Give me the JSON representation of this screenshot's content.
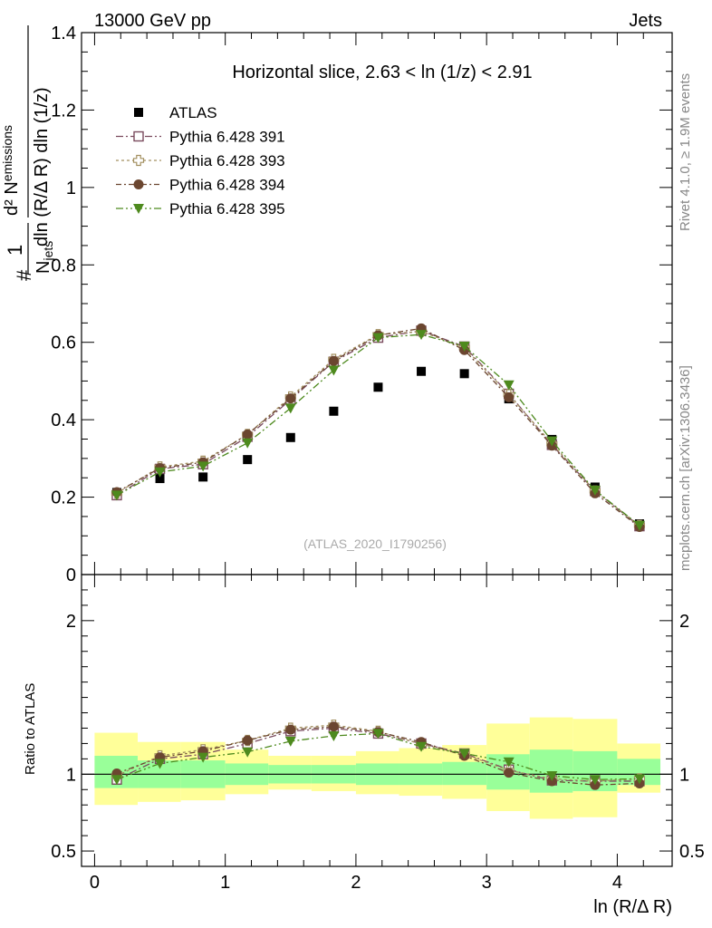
{
  "header": {
    "left_label": "13000 GeV pp",
    "right_label": "Jets"
  },
  "side_labels": {
    "rivet": "Rivet 4.1.0, ≥ 1.9M events",
    "mcplots": "mcplots.cern.ch [arXiv:1306.3436]"
  },
  "ylabel_top": {
    "num": "#",
    "den_main": "N",
    "den_sub": "jets",
    "dnum_main": "d² N",
    "dnum_sub": "emissions",
    "dden": "dln (R/Δ R) dln (1/z)"
  },
  "ratio_ylabel": "Ratio to ATLAS",
  "xlabel": "ln (R/Δ R)",
  "chart_data": [
    {
      "type": "scatter",
      "title": "Horizontal slice, 2.63 < ln (1/z) < 2.91",
      "watermark": "(ATLAS_2020_I1790256)",
      "xlim": [
        -0.1,
        4.42
      ],
      "ylim": [
        0,
        1.4
      ],
      "yticks": [
        0,
        0.2,
        0.4,
        0.6,
        0.8,
        1,
        1.2,
        1.4
      ],
      "ytick_labels": [
        "0",
        "0.2",
        "0.4",
        "0.6",
        "0.8",
        "1",
        "1.2",
        "1.4"
      ],
      "x": [
        0.17,
        0.5,
        0.83,
        1.17,
        1.5,
        1.83,
        2.17,
        2.5,
        2.83,
        3.17,
        3.5,
        3.83,
        4.17
      ],
      "series": [
        {
          "name": "ATLAS",
          "color": "#000000",
          "marker": "square-filled",
          "values": [
            0.212,
            0.248,
            0.252,
            0.297,
            0.354,
            0.422,
            0.484,
            0.525,
            0.519,
            0.454,
            0.349,
            0.226,
            0.131
          ]
        },
        {
          "name": "Pythia 6.428 391",
          "color": "#7a4b5e",
          "marker": "square-open",
          "values": [
            0.205,
            0.273,
            0.285,
            0.356,
            0.452,
            0.55,
            0.612,
            0.63,
            0.589,
            0.467,
            0.335,
            0.216,
            0.125
          ]
        },
        {
          "name": "Pythia 6.428 393",
          "color": "#a39060",
          "marker": "cross-open",
          "values": [
            0.21,
            0.278,
            0.293,
            0.362,
            0.459,
            0.556,
            0.62,
            0.628,
            0.586,
            0.465,
            0.338,
            0.216,
            0.127
          ]
        },
        {
          "name": "Pythia 6.428 394",
          "color": "#6b4630",
          "marker": "circle-filled",
          "values": [
            0.213,
            0.275,
            0.29,
            0.362,
            0.455,
            0.552,
            0.618,
            0.636,
            0.58,
            0.458,
            0.333,
            0.21,
            0.123
          ]
        },
        {
          "name": "Pythia 6.428 395",
          "color": "#4e8a1e",
          "marker": "triangle-down-filled",
          "values": [
            0.205,
            0.265,
            0.28,
            0.34,
            0.43,
            0.528,
            0.612,
            0.62,
            0.59,
            0.49,
            0.345,
            0.218,
            0.127
          ]
        }
      ]
    },
    {
      "type": "scatter",
      "title": "",
      "ylabel": "Ratio to ATLAS",
      "xlabel": "ln (R/Δ R)",
      "xlim": [
        -0.1,
        4.42
      ],
      "ylim": [
        0.4,
        2.3
      ],
      "yticks": [
        0.5,
        1,
        2
      ],
      "ytick_labels": [
        "0.5",
        "1",
        "2"
      ],
      "xticks": [
        0,
        1,
        2,
        3,
        4
      ],
      "xtick_labels": [
        "0",
        "1",
        "2",
        "3",
        "4"
      ],
      "reference_line": 1,
      "bins": [
        {
          "lo": 0.0,
          "hi": 0.33,
          "inner": [
            0.91,
            1.12
          ],
          "outer": [
            0.8,
            1.27
          ]
        },
        {
          "lo": 0.33,
          "hi": 0.66,
          "inner": [
            0.91,
            1.09
          ],
          "outer": [
            0.82,
            1.21
          ]
        },
        {
          "lo": 0.66,
          "hi": 1.0,
          "inner": [
            0.91,
            1.09
          ],
          "outer": [
            0.83,
            1.21
          ]
        },
        {
          "lo": 1.0,
          "hi": 1.33,
          "inner": [
            0.93,
            1.07
          ],
          "outer": [
            0.87,
            1.16
          ]
        },
        {
          "lo": 1.33,
          "hi": 1.66,
          "inner": [
            0.94,
            1.06
          ],
          "outer": [
            0.9,
            1.12
          ]
        },
        {
          "lo": 1.66,
          "hi": 2.0,
          "inner": [
            0.94,
            1.06
          ],
          "outer": [
            0.89,
            1.12
          ]
        },
        {
          "lo": 2.0,
          "hi": 2.33,
          "inner": [
            0.93,
            1.07
          ],
          "outer": [
            0.87,
            1.15
          ]
        },
        {
          "lo": 2.33,
          "hi": 2.66,
          "inner": [
            0.93,
            1.07
          ],
          "outer": [
            0.86,
            1.17
          ]
        },
        {
          "lo": 2.66,
          "hi": 3.0,
          "inner": [
            0.93,
            1.08
          ],
          "outer": [
            0.84,
            1.19
          ]
        },
        {
          "lo": 3.0,
          "hi": 3.33,
          "inner": [
            0.9,
            1.13
          ],
          "outer": [
            0.76,
            1.33
          ]
        },
        {
          "lo": 3.33,
          "hi": 3.66,
          "inner": [
            0.88,
            1.16
          ],
          "outer": [
            0.71,
            1.37
          ]
        },
        {
          "lo": 3.66,
          "hi": 4.0,
          "inner": [
            0.89,
            1.15
          ],
          "outer": [
            0.72,
            1.36
          ]
        },
        {
          "lo": 4.0,
          "hi": 4.33,
          "inner": [
            0.93,
            1.1
          ],
          "outer": [
            0.88,
            1.2
          ]
        }
      ],
      "x": [
        0.17,
        0.5,
        0.83,
        1.17,
        1.5,
        1.83,
        2.17,
        2.5,
        2.83,
        3.17,
        3.5,
        3.83,
        4.17
      ],
      "series": [
        {
          "name": "Pythia 6.428 391",
          "color": "#7a4b5e",
          "marker": "square-open",
          "values": [
            0.965,
            1.1,
            1.13,
            1.2,
            1.28,
            1.3,
            1.265,
            1.2,
            1.135,
            1.03,
            0.96,
            0.955,
            0.955
          ]
        },
        {
          "name": "Pythia 6.428 393",
          "color": "#a39060",
          "marker": "cross-open",
          "values": [
            0.99,
            1.12,
            1.16,
            1.22,
            1.3,
            1.32,
            1.28,
            1.195,
            1.13,
            1.025,
            0.97,
            0.955,
            0.97
          ]
        },
        {
          "name": "Pythia 6.428 394",
          "color": "#6b4630",
          "marker": "circle-filled",
          "values": [
            1.005,
            1.11,
            1.15,
            1.22,
            1.29,
            1.31,
            1.275,
            1.21,
            1.12,
            1.01,
            0.955,
            0.93,
            0.94
          ]
        },
        {
          "name": "Pythia 6.428 395",
          "color": "#4e8a1e",
          "marker": "triangle-down-filled",
          "values": [
            0.965,
            1.07,
            1.11,
            1.145,
            1.215,
            1.25,
            1.265,
            1.18,
            1.135,
            1.08,
            0.99,
            0.965,
            0.97
          ]
        }
      ]
    }
  ]
}
